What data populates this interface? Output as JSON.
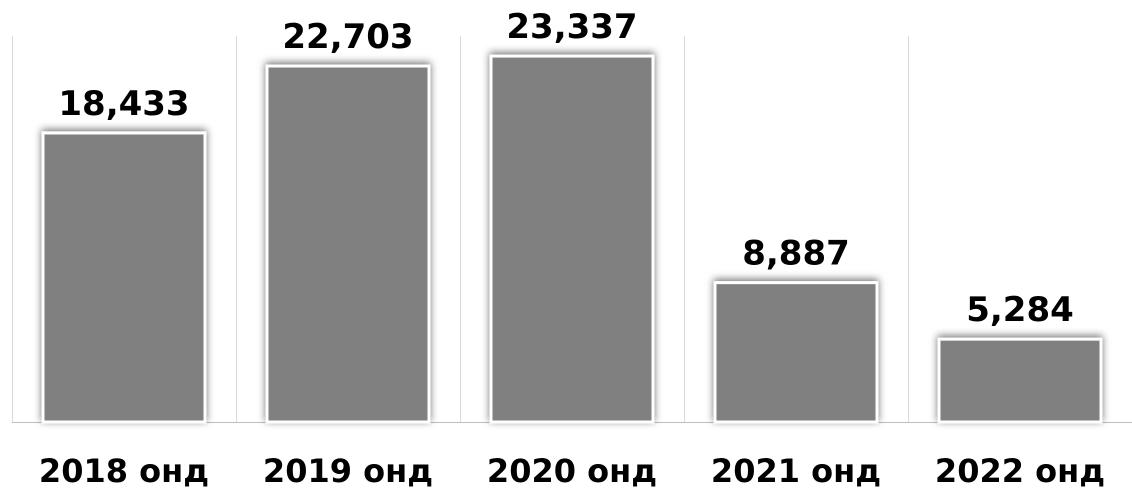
{
  "chart_data": {
    "type": "bar",
    "categories": [
      "2018 онд",
      "2019 онд",
      "2020 онд",
      "2021 онд",
      "2022 онд"
    ],
    "values": [
      18433,
      22703,
      23337,
      8887,
      5284
    ],
    "data_labels": [
      "18,433",
      "22,703",
      "23,337",
      "8,887",
      "5,284"
    ],
    "title": "",
    "xlabel": "",
    "ylabel": "",
    "ylim": [
      0,
      25000
    ],
    "grid": true,
    "legend": "none",
    "colors": {
      "bar": "#808080",
      "bar_outline": "#ffffff",
      "grid": "#d9d9d9",
      "text": "#000000"
    }
  }
}
